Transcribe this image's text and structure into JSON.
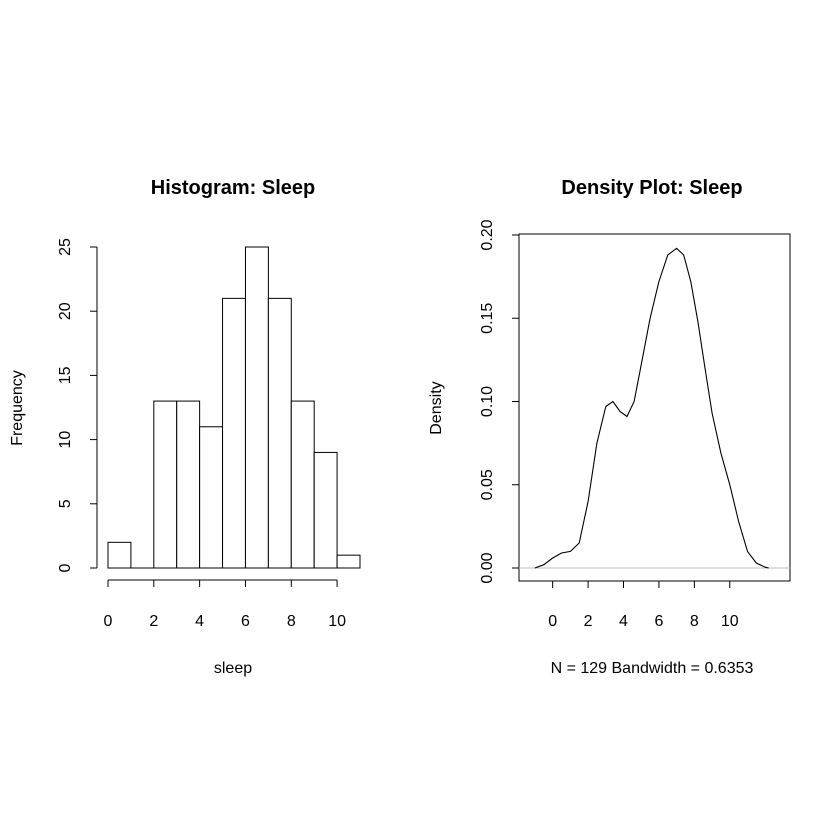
{
  "chart_data": [
    {
      "type": "bar",
      "title": "Histogram: Sleep",
      "xlabel": "sleep",
      "ylabel": "Frequency",
      "bins": [
        [
          0,
          1
        ],
        [
          1,
          2
        ],
        [
          2,
          3
        ],
        [
          3,
          4
        ],
        [
          4,
          5
        ],
        [
          5,
          6
        ],
        [
          6,
          7
        ],
        [
          7,
          8
        ],
        [
          8,
          9
        ],
        [
          9,
          10
        ],
        [
          10,
          11
        ]
      ],
      "values": [
        2,
        0,
        13,
        13,
        11,
        21,
        25,
        21,
        13,
        9,
        1
      ],
      "xticks": [
        0,
        2,
        4,
        6,
        8,
        10
      ],
      "yticks": [
        0,
        5,
        10,
        15,
        20,
        25
      ],
      "xlim": [
        0,
        11
      ],
      "ylim": [
        0,
        25
      ]
    },
    {
      "type": "line",
      "title": "Density Plot: Sleep",
      "xlabel": "N = 129   Bandwidth = 0.6353",
      "ylabel": "Density",
      "xticks": [
        0,
        2,
        4,
        6,
        8,
        10
      ],
      "yticks": [
        "0.00",
        "0.05",
        "0.10",
        "0.15",
        "0.20"
      ],
      "xlim": [
        -1.9,
        13.4
      ],
      "ylim": [
        0,
        0.2
      ],
      "series": [
        {
          "x": [
            -1.0,
            -0.5,
            0.0,
            0.5,
            1.0,
            1.5,
            2.0,
            2.5,
            3.0,
            3.4,
            3.8,
            4.2,
            4.6,
            5.0,
            5.5,
            6.0,
            6.5,
            7.0,
            7.4,
            7.8,
            8.2,
            8.6,
            9.0,
            9.5,
            10.0,
            10.5,
            11.0,
            11.5,
            12.0,
            12.2
          ],
          "y": [
            0.0,
            0.002,
            0.006,
            0.009,
            0.01,
            0.015,
            0.04,
            0.075,
            0.097,
            0.1,
            0.094,
            0.091,
            0.1,
            0.122,
            0.15,
            0.172,
            0.188,
            0.192,
            0.188,
            0.172,
            0.148,
            0.12,
            0.093,
            0.069,
            0.05,
            0.028,
            0.01,
            0.003,
            0.0005,
            0.0
          ]
        }
      ]
    }
  ]
}
